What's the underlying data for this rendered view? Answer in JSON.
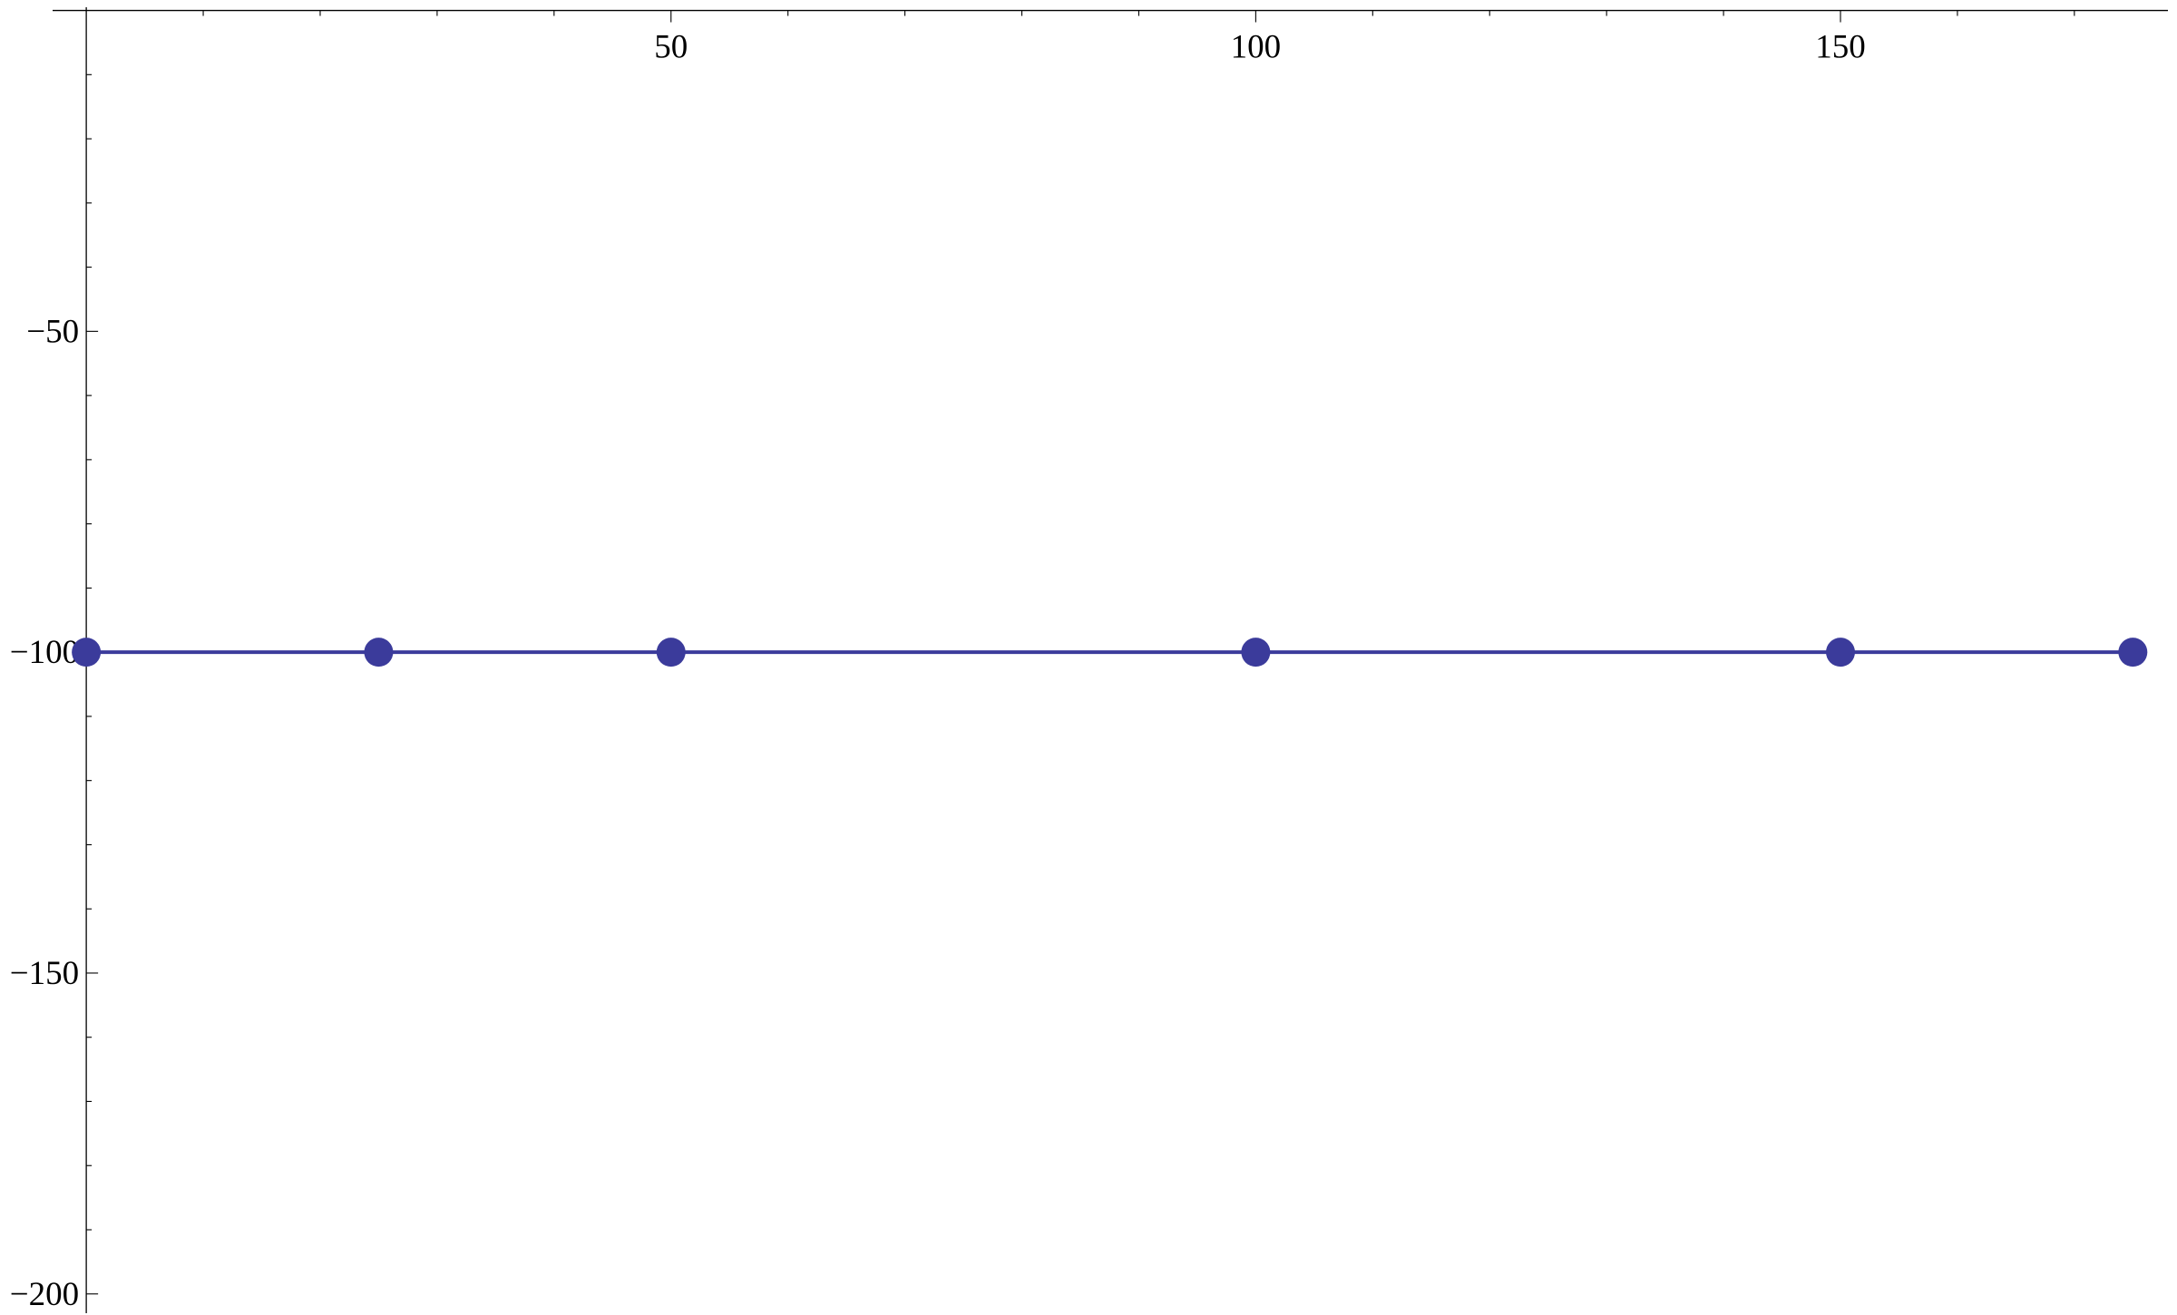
{
  "chart_data": {
    "type": "line",
    "x": [
      0,
      25,
      50,
      100,
      150,
      175
    ],
    "series": [
      {
        "values": [
          -100,
          -100,
          -100,
          -100,
          -100,
          -100
        ],
        "color": "#3b3b9b"
      }
    ],
    "xlim": [
      -3.5,
      178
    ],
    "ylim": [
      -203,
      0.5
    ],
    "x_ticks": {
      "major": [
        50,
        100,
        150
      ],
      "labels": [
        "50",
        "100",
        "150"
      ],
      "minor_step": 10
    },
    "y_ticks": {
      "major": [
        -50,
        -100,
        -150,
        -200
      ],
      "labels": [
        "−50",
        "−100",
        "−150",
        "−200"
      ],
      "minor_step": 10
    },
    "x_axis_at_y": 0,
    "y_axis_at_x": 0,
    "markers": true,
    "grid": false,
    "title": "",
    "xlabel": "",
    "ylabel": ""
  }
}
